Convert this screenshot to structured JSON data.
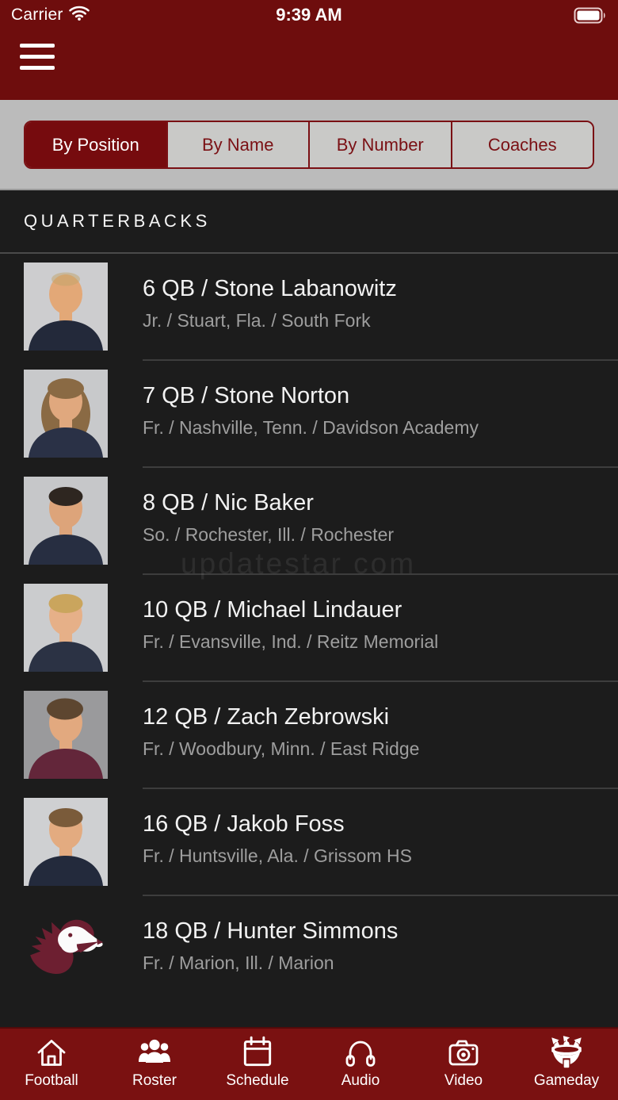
{
  "status_bar": {
    "carrier": "Carrier",
    "time": "9:39 AM",
    "icons": [
      "wifi-icon",
      "battery-icon"
    ]
  },
  "menu": {
    "icon": "hamburger-menu-icon"
  },
  "segmented_tabs": {
    "items": [
      {
        "label": "By Position",
        "selected": true
      },
      {
        "label": "By Name",
        "selected": false
      },
      {
        "label": "By Number",
        "selected": false
      },
      {
        "label": "Coaches",
        "selected": false
      }
    ]
  },
  "section": {
    "title": "QUARTERBACKS"
  },
  "players": [
    {
      "title": "6 QB / Stone Labanowitz",
      "subtitle": "Jr. / Stuart, Fla. / South Fork",
      "avatar": {
        "style": "bald",
        "bg": "#cdcdcf",
        "skin": "#e3a877",
        "hair": "#c2a46a",
        "shirt": "#23293a"
      }
    },
    {
      "title": "7 QB / Stone Norton",
      "subtitle": "Fr. / Nashville, Tenn. / Davidson Academy",
      "avatar": {
        "style": "long",
        "bg": "#c8c9cb",
        "skin": "#e0a87e",
        "hair": "#8a6a44",
        "shirt": "#2a3146"
      }
    },
    {
      "title": "8 QB / Nic Baker",
      "subtitle": "So. / Rochester, Ill. / Rochester",
      "avatar": {
        "style": "short",
        "bg": "#c6c7c9",
        "skin": "#dda47a",
        "hair": "#2e2620",
        "shirt": "#272e41"
      }
    },
    {
      "title": "10 QB / Michael Lindauer",
      "subtitle": "Fr. / Evansville, Ind. / Reitz Memorial",
      "avatar": {
        "style": "short",
        "bg": "#cbccce",
        "skin": "#e6b088",
        "hair": "#caa55d",
        "shirt": "#2b3244"
      }
    },
    {
      "title": "12 QB / Zach Zebrowski",
      "subtitle": "Fr. / Woodbury, Minn. / East Ridge",
      "avatar": {
        "style": "swoop",
        "bg": "#9a9a9c",
        "skin": "#e2a97f",
        "hair": "#5d4630",
        "shirt": "#63263a"
      }
    },
    {
      "title": "16 QB / Jakob Foss",
      "subtitle": "Fr. / Huntsville, Ala. / Grissom HS",
      "avatar": {
        "style": "short",
        "bg": "#cfd0d2",
        "skin": "#e3ab80",
        "hair": "#7a5b3a",
        "shirt": "#232a3c"
      }
    },
    {
      "title": "18 QB / Hunter Simmons",
      "subtitle": "Fr. / Marion, Ill. / Marion",
      "avatar": {
        "style": "logo",
        "icon": "saluki-logo-icon",
        "maroon": "#6d1f31"
      }
    }
  ],
  "watermark": "updatestar com",
  "tab_bar": {
    "items": [
      {
        "label": "Football",
        "icon": "home-icon"
      },
      {
        "label": "Roster",
        "icon": "people-icon"
      },
      {
        "label": "Schedule",
        "icon": "calendar-icon"
      },
      {
        "label": "Audio",
        "icon": "headphones-icon"
      },
      {
        "label": "Video",
        "icon": "camera-icon"
      },
      {
        "label": "Gameday",
        "icon": "stadium-icon"
      }
    ]
  },
  "colors": {
    "header_red": "#6e0d0d",
    "selected_segment_red": "#760b0e",
    "segment_border": "#7a1014",
    "segment_bg": "#c9c9c7",
    "filter_bar_gray": "#bbbbbb",
    "nav_red": "#7a1111",
    "nav_border": "#520a0a",
    "list_bg": "#1c1c1c",
    "divider": "#3d3d3d",
    "title_text": "#f2f2f2",
    "subtitle_text": "#9e9e9e",
    "logo_maroon": "#6d1f31"
  }
}
